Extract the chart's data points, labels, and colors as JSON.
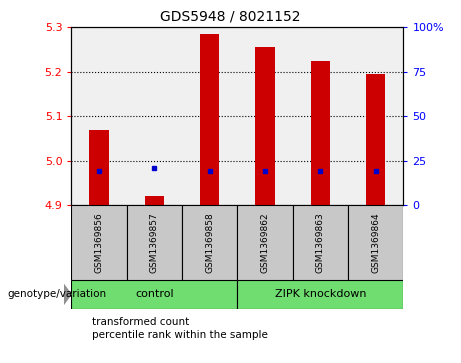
{
  "title": "GDS5948 / 8021152",
  "samples": [
    "GSM1369856",
    "GSM1369857",
    "GSM1369858",
    "GSM1369862",
    "GSM1369863",
    "GSM1369864"
  ],
  "transformed_counts": [
    5.07,
    4.92,
    5.285,
    5.255,
    5.225,
    5.195
  ],
  "percentile_ranks": [
    19,
    21,
    19,
    19,
    19,
    19
  ],
  "bar_bottom": 4.9,
  "ylim_left": [
    4.9,
    5.3
  ],
  "ylim_right": [
    0,
    100
  ],
  "yticks_left": [
    4.9,
    5.0,
    5.1,
    5.2,
    5.3
  ],
  "yticks_right": [
    0,
    25,
    50,
    75,
    100
  ],
  "ytick_labels_right": [
    "0",
    "25",
    "50",
    "75",
    "100%"
  ],
  "bar_color": "#CC0000",
  "dot_color": "#0000CC",
  "bar_width": 0.35,
  "legend_bar_label": "transformed count",
  "legend_dot_label": "percentile rank within the sample",
  "genotype_label": "genotype/variation",
  "plot_bg_color": "#F0F0F0",
  "sample_box_color": "#C8C8C8",
  "control_label": "control",
  "knockdown_label": "ZIPK knockdown",
  "group_color": "#6FDD6F"
}
